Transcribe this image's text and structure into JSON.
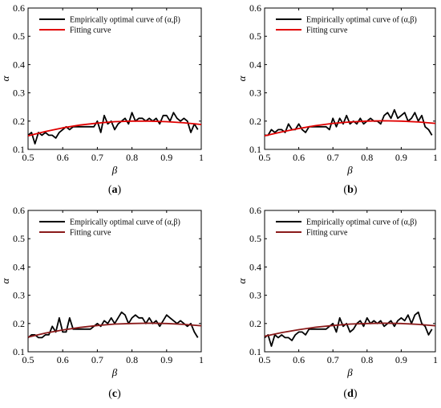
{
  "figure": {
    "caption_labels": [
      "a",
      "b",
      "c",
      "d"
    ]
  },
  "chart_data": [
    {
      "type": "line",
      "panel": "a",
      "xlabel": "β",
      "ylabel": "α",
      "xlim": [
        0.5,
        1.0
      ],
      "ylim": [
        0.1,
        0.6
      ],
      "xticks": [
        "0.5",
        "0.6",
        "0.7",
        "0.8",
        "0.9",
        "1"
      ],
      "yticks": [
        "0.1",
        "0.2",
        "0.3",
        "0.4",
        "0.5",
        "0.6"
      ],
      "legend": "top",
      "grid": false,
      "series": [
        {
          "name": "Empirically optimal curve of (α,β)",
          "color": "#000000",
          "x": [
            0.5,
            0.51,
            0.52,
            0.53,
            0.54,
            0.55,
            0.56,
            0.57,
            0.58,
            0.59,
            0.6,
            0.61,
            0.62,
            0.63,
            0.64,
            0.65,
            0.66,
            0.67,
            0.68,
            0.69,
            0.7,
            0.71,
            0.72,
            0.73,
            0.74,
            0.75,
            0.76,
            0.77,
            0.78,
            0.79,
            0.8,
            0.81,
            0.82,
            0.83,
            0.84,
            0.85,
            0.86,
            0.87,
            0.88,
            0.89,
            0.9,
            0.91,
            0.92,
            0.93,
            0.94,
            0.95,
            0.96,
            0.97,
            0.98,
            0.99
          ],
          "y": [
            0.15,
            0.16,
            0.12,
            0.16,
            0.15,
            0.16,
            0.15,
            0.15,
            0.14,
            0.16,
            0.17,
            0.18,
            0.17,
            0.18,
            0.18,
            0.18,
            0.18,
            0.18,
            0.18,
            0.18,
            0.2,
            0.16,
            0.22,
            0.19,
            0.2,
            0.17,
            0.19,
            0.2,
            0.21,
            0.19,
            0.23,
            0.2,
            0.21,
            0.21,
            0.2,
            0.21,
            0.2,
            0.21,
            0.19,
            0.22,
            0.22,
            0.2,
            0.23,
            0.21,
            0.2,
            0.21,
            0.2,
            0.16,
            0.19,
            0.17
          ]
        },
        {
          "name": "Fitting curve",
          "color": "#e00000",
          "x": [
            0.5,
            0.55,
            0.6,
            0.65,
            0.7,
            0.75,
            0.8,
            0.85,
            0.9,
            0.95,
            1.0
          ],
          "y": [
            0.148,
            0.163,
            0.176,
            0.186,
            0.193,
            0.198,
            0.2,
            0.2,
            0.198,
            0.194,
            0.188
          ]
        }
      ]
    },
    {
      "type": "line",
      "panel": "b",
      "xlabel": "β",
      "ylabel": "α",
      "xlim": [
        0.5,
        1.0
      ],
      "ylim": [
        0.1,
        0.6
      ],
      "xticks": [
        "0.5",
        "0.6",
        "0.7",
        "0.8",
        "0.9",
        "1"
      ],
      "yticks": [
        "0.1",
        "0.2",
        "0.3",
        "0.4",
        "0.5",
        "0.6"
      ],
      "legend": "top",
      "grid": false,
      "series": [
        {
          "name": "Empirically optimal curve of (α,β)",
          "color": "#000000",
          "x": [
            0.5,
            0.51,
            0.52,
            0.53,
            0.54,
            0.55,
            0.56,
            0.57,
            0.58,
            0.59,
            0.6,
            0.61,
            0.62,
            0.63,
            0.64,
            0.65,
            0.66,
            0.67,
            0.68,
            0.69,
            0.7,
            0.71,
            0.72,
            0.73,
            0.74,
            0.75,
            0.76,
            0.77,
            0.78,
            0.79,
            0.8,
            0.81,
            0.82,
            0.83,
            0.84,
            0.85,
            0.86,
            0.87,
            0.88,
            0.89,
            0.9,
            0.91,
            0.92,
            0.93,
            0.94,
            0.95,
            0.96,
            0.97,
            0.98,
            0.99
          ],
          "y": [
            0.15,
            0.15,
            0.17,
            0.16,
            0.17,
            0.17,
            0.16,
            0.19,
            0.17,
            0.17,
            0.19,
            0.17,
            0.16,
            0.18,
            0.18,
            0.18,
            0.18,
            0.18,
            0.18,
            0.17,
            0.21,
            0.18,
            0.21,
            0.19,
            0.22,
            0.19,
            0.2,
            0.19,
            0.21,
            0.19,
            0.2,
            0.21,
            0.2,
            0.2,
            0.19,
            0.22,
            0.23,
            0.21,
            0.24,
            0.21,
            0.22,
            0.23,
            0.2,
            0.21,
            0.23,
            0.2,
            0.22,
            0.18,
            0.17,
            0.15
          ]
        },
        {
          "name": "Fitting curve",
          "color": "#e00000",
          "x": [
            0.5,
            0.55,
            0.6,
            0.65,
            0.7,
            0.75,
            0.8,
            0.85,
            0.9,
            0.95,
            1.0
          ],
          "y": [
            0.148,
            0.162,
            0.174,
            0.184,
            0.192,
            0.197,
            0.2,
            0.201,
            0.2,
            0.197,
            0.192
          ]
        }
      ]
    },
    {
      "type": "line",
      "panel": "c",
      "xlabel": "β",
      "ylabel": "α",
      "xlim": [
        0.5,
        1.0
      ],
      "ylim": [
        0.1,
        0.6
      ],
      "xticks": [
        "0.5",
        "0.6",
        "0.7",
        "0.8",
        "0.9",
        "1"
      ],
      "yticks": [
        "0.1",
        "0.2",
        "0.3",
        "0.4",
        "0.5",
        "0.6"
      ],
      "legend": "top",
      "grid": false,
      "series": [
        {
          "name": "Empirically optimal curve of (α,β)",
          "color": "#000000",
          "x": [
            0.5,
            0.51,
            0.52,
            0.53,
            0.54,
            0.55,
            0.56,
            0.57,
            0.58,
            0.59,
            0.6,
            0.61,
            0.62,
            0.63,
            0.64,
            0.65,
            0.66,
            0.67,
            0.68,
            0.69,
            0.7,
            0.71,
            0.72,
            0.73,
            0.74,
            0.75,
            0.76,
            0.77,
            0.78,
            0.79,
            0.8,
            0.81,
            0.82,
            0.83,
            0.84,
            0.85,
            0.86,
            0.87,
            0.88,
            0.89,
            0.9,
            0.91,
            0.92,
            0.93,
            0.94,
            0.95,
            0.96,
            0.97,
            0.98,
            0.99
          ],
          "y": [
            0.15,
            0.16,
            0.16,
            0.15,
            0.15,
            0.16,
            0.16,
            0.19,
            0.17,
            0.22,
            0.17,
            0.17,
            0.22,
            0.18,
            0.18,
            0.18,
            0.18,
            0.18,
            0.18,
            0.19,
            0.2,
            0.19,
            0.21,
            0.2,
            0.22,
            0.2,
            0.22,
            0.24,
            0.23,
            0.2,
            0.22,
            0.23,
            0.22,
            0.22,
            0.2,
            0.22,
            0.2,
            0.21,
            0.19,
            0.21,
            0.23,
            0.22,
            0.21,
            0.2,
            0.21,
            0.2,
            0.19,
            0.2,
            0.17,
            0.15
          ]
        },
        {
          "name": "Fitting curve",
          "color": "#8b1a1a",
          "x": [
            0.5,
            0.55,
            0.6,
            0.65,
            0.7,
            0.75,
            0.8,
            0.85,
            0.9,
            0.95,
            1.0
          ],
          "y": [
            0.152,
            0.166,
            0.177,
            0.186,
            0.193,
            0.198,
            0.2,
            0.201,
            0.2,
            0.197,
            0.192
          ]
        }
      ]
    },
    {
      "type": "line",
      "panel": "d",
      "xlabel": "β",
      "ylabel": "α",
      "xlim": [
        0.5,
        1.0
      ],
      "ylim": [
        0.1,
        0.6
      ],
      "xticks": [
        "0.5",
        "0.6",
        "0.7",
        "0.8",
        "0.9",
        "1"
      ],
      "yticks": [
        "0.1",
        "0.2",
        "0.3",
        "0.4",
        "0.5",
        "0.6"
      ],
      "legend": "top",
      "grid": false,
      "series": [
        {
          "name": "Empirically optimal curve of (α,β)",
          "color": "#000000",
          "x": [
            0.5,
            0.51,
            0.52,
            0.53,
            0.54,
            0.55,
            0.56,
            0.57,
            0.58,
            0.59,
            0.6,
            0.61,
            0.62,
            0.63,
            0.64,
            0.65,
            0.66,
            0.67,
            0.68,
            0.69,
            0.7,
            0.71,
            0.72,
            0.73,
            0.74,
            0.75,
            0.76,
            0.77,
            0.78,
            0.79,
            0.8,
            0.81,
            0.82,
            0.83,
            0.84,
            0.85,
            0.86,
            0.87,
            0.88,
            0.89,
            0.9,
            0.91,
            0.92,
            0.93,
            0.94,
            0.95,
            0.96,
            0.97,
            0.98,
            0.99
          ],
          "y": [
            0.15,
            0.16,
            0.12,
            0.16,
            0.15,
            0.16,
            0.15,
            0.15,
            0.14,
            0.16,
            0.17,
            0.17,
            0.16,
            0.18,
            0.18,
            0.18,
            0.18,
            0.18,
            0.18,
            0.19,
            0.2,
            0.17,
            0.22,
            0.19,
            0.2,
            0.17,
            0.18,
            0.2,
            0.21,
            0.19,
            0.22,
            0.2,
            0.21,
            0.2,
            0.21,
            0.19,
            0.2,
            0.21,
            0.19,
            0.21,
            0.22,
            0.21,
            0.23,
            0.2,
            0.23,
            0.24,
            0.2,
            0.19,
            0.16,
            0.18
          ]
        },
        {
          "name": "Fitting curve",
          "color": "#8b1a1a",
          "x": [
            0.5,
            0.55,
            0.6,
            0.65,
            0.7,
            0.75,
            0.8,
            0.85,
            0.9,
            0.95,
            1.0
          ],
          "y": [
            0.155,
            0.168,
            0.178,
            0.187,
            0.193,
            0.198,
            0.2,
            0.201,
            0.2,
            0.197,
            0.192
          ]
        }
      ]
    }
  ]
}
